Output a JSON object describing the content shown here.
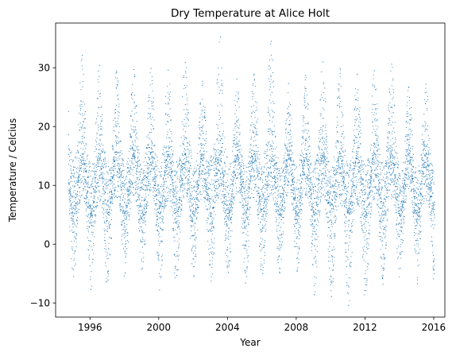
{
  "chart_data": {
    "type": "scatter",
    "title": "Dry Temperature at Alice Holt",
    "xlabel": "Year",
    "ylabel": "Temperature / Celcius",
    "xlim": [
      1994.0,
      2016.65
    ],
    "ylim": [
      -12.4,
      37.6
    ],
    "x_ticks": [
      1996,
      2000,
      2004,
      2008,
      2012,
      2016
    ],
    "y_ticks": [
      -10,
      0,
      10,
      20,
      30
    ],
    "x_range_data": [
      1994.75,
      2016.05
    ],
    "grid": false,
    "legend": "none",
    "marker_color": "#1f77b4",
    "series": [
      {
        "name": "",
        "description_values": {
          "yearly_summer_peaks_approx": [
            {
              "x": 1995.55,
              "y": 32.1
            },
            {
              "x": 1996.55,
              "y": 30.4
            },
            {
              "x": 1997.55,
              "y": 29.4
            },
            {
              "x": 1998.55,
              "y": 29.7
            },
            {
              "x": 1999.55,
              "y": 29.9
            },
            {
              "x": 2000.55,
              "y": 29.6
            },
            {
              "x": 2001.55,
              "y": 30.9
            },
            {
              "x": 2002.55,
              "y": 27.7
            },
            {
              "x": 2003.6,
              "y": 35.2
            },
            {
              "x": 2004.55,
              "y": 28.1
            },
            {
              "x": 2005.55,
              "y": 28.9
            },
            {
              "x": 2006.55,
              "y": 34.5
            },
            {
              "x": 2007.55,
              "y": 27.3
            },
            {
              "x": 2008.55,
              "y": 28.7
            },
            {
              "x": 2009.55,
              "y": 31.0
            },
            {
              "x": 2010.55,
              "y": 29.9
            },
            {
              "x": 2011.55,
              "y": 28.9
            },
            {
              "x": 2012.55,
              "y": 29.5
            },
            {
              "x": 2013.55,
              "y": 30.6
            },
            {
              "x": 2014.55,
              "y": 26.7
            },
            {
              "x": 2015.55,
              "y": 27.2
            }
          ],
          "yearly_winter_lows_approx": [
            {
              "x": 1995.05,
              "y": -5.5
            },
            {
              "x": 1996.05,
              "y": -7.7
            },
            {
              "x": 1997.05,
              "y": -6.1
            },
            {
              "x": 1998.05,
              "y": -4.9
            },
            {
              "x": 1999.05,
              "y": -4.1
            },
            {
              "x": 2000.05,
              "y": -7.8
            },
            {
              "x": 2001.05,
              "y": -5.3
            },
            {
              "x": 2002.05,
              "y": -5.5
            },
            {
              "x": 2003.05,
              "y": -6.3
            },
            {
              "x": 2004.05,
              "y": -4.8
            },
            {
              "x": 2005.05,
              "y": -6.6
            },
            {
              "x": 2006.05,
              "y": -5.0
            },
            {
              "x": 2007.05,
              "y": -4.9
            },
            {
              "x": 2008.05,
              "y": -4.6
            },
            {
              "x": 2009.05,
              "y": -8.6
            },
            {
              "x": 2010.05,
              "y": -8.9
            },
            {
              "x": 2011.05,
              "y": -10.4
            },
            {
              "x": 2012.05,
              "y": -7.9
            },
            {
              "x": 2013.05,
              "y": -6.8
            },
            {
              "x": 2014.05,
              "y": -4.1
            },
            {
              "x": 2015.05,
              "y": -6.7
            }
          ]
        }
      }
    ]
  }
}
